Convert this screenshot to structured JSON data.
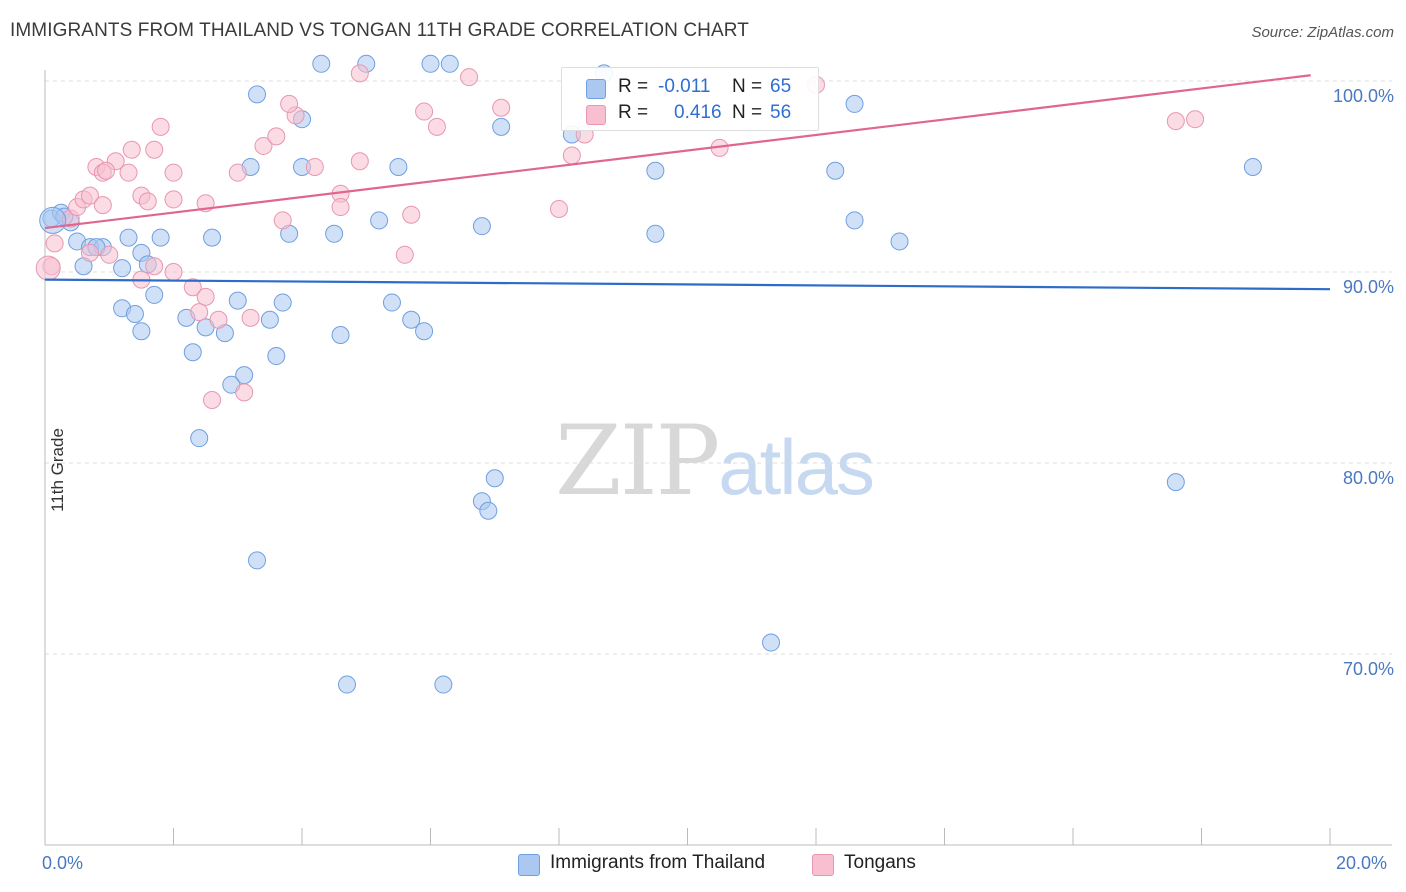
{
  "title": "IMMIGRANTS FROM THAILAND VS TONGAN 11TH GRADE CORRELATION CHART",
  "source": "Source: ZipAtlas.com",
  "watermark": {
    "zip": "ZIP",
    "atlas": "atlas"
  },
  "legend_top": [
    {
      "r_label": "R =",
      "r_value": "-0.011",
      "n_label": "N =",
      "n_value": "65"
    },
    {
      "r_label": "R =",
      "r_value": "0.416",
      "n_label": "N =",
      "n_value": "56"
    }
  ],
  "legend_bottom": [
    "Immigrants from Thailand",
    "Tongans"
  ],
  "colors": {
    "blue_fill": "#aac8f0",
    "blue_stroke": "#6f9fe0",
    "blue_line": "#2d6cc9",
    "pink_fill": "#f7bfd0",
    "pink_stroke": "#e896b2",
    "pink_line": "#e0668f",
    "grid": "#dcdcdc",
    "axis_text": "#4a78c2"
  },
  "chart_data": {
    "type": "scatter",
    "title": "IMMIGRANTS FROM THAILAND VS TONGAN 11TH GRADE CORRELATION CHART",
    "xlabel": "",
    "ylabel": "11th Grade",
    "xlim": [
      0,
      20
    ],
    "ylim": [
      60,
      101
    ],
    "x_tick_labels": [
      "0.0%",
      "20.0%"
    ],
    "y_ticks": [
      {
        "value": 100,
        "label": "100.0%"
      },
      {
        "value": 90,
        "label": "90.0%"
      },
      {
        "value": 80,
        "label": "80.0%"
      },
      {
        "value": 70,
        "label": "70.0%"
      }
    ],
    "series": [
      {
        "name": "Immigrants from Thailand",
        "color": "blue",
        "r": -0.011,
        "n": 65,
        "trend": [
          [
            0,
            89.6
          ],
          [
            20,
            89.1
          ]
        ],
        "points": [
          [
            0.1,
            92.8
          ],
          [
            0.25,
            93.1
          ],
          [
            0.4,
            92.6
          ],
          [
            0.5,
            91.6
          ],
          [
            0.7,
            91.3
          ],
          [
            0.9,
            91.3
          ],
          [
            1.3,
            91.8
          ],
          [
            1.5,
            91.0
          ],
          [
            1.8,
            91.8
          ],
          [
            0.6,
            90.3
          ],
          [
            0.8,
            91.3
          ],
          [
            1.2,
            90.2
          ],
          [
            2.6,
            91.8
          ],
          [
            3.3,
            99.3
          ],
          [
            4.3,
            100.9
          ],
          [
            5.0,
            100.9
          ],
          [
            6.0,
            100.9
          ],
          [
            6.3,
            100.9
          ],
          [
            5.5,
            95.5
          ],
          [
            4.0,
            98.0
          ],
          [
            4.0,
            95.5
          ],
          [
            3.2,
            95.5
          ],
          [
            3.8,
            92.0
          ],
          [
            4.5,
            92.0
          ],
          [
            5.2,
            92.7
          ],
          [
            7.1,
            97.6
          ],
          [
            6.8,
            92.4
          ],
          [
            8.2,
            97.2
          ],
          [
            9.5,
            95.3
          ],
          [
            9.5,
            92.0
          ],
          [
            12.3,
            95.3
          ],
          [
            12.6,
            98.8
          ],
          [
            12.6,
            92.7
          ],
          [
            13.3,
            91.6
          ],
          [
            18.8,
            95.5
          ],
          [
            1.7,
            88.8
          ],
          [
            3.0,
            88.5
          ],
          [
            3.7,
            88.4
          ],
          [
            5.4,
            88.4
          ],
          [
            1.2,
            88.1
          ],
          [
            1.4,
            87.8
          ],
          [
            2.2,
            87.6
          ],
          [
            3.5,
            87.5
          ],
          [
            5.7,
            87.5
          ],
          [
            1.5,
            86.9
          ],
          [
            2.5,
            87.1
          ],
          [
            2.8,
            86.8
          ],
          [
            4.6,
            86.7
          ],
          [
            5.9,
            86.9
          ],
          [
            2.3,
            85.8
          ],
          [
            3.6,
            85.6
          ],
          [
            3.1,
            84.6
          ],
          [
            2.9,
            84.1
          ],
          [
            2.4,
            81.3
          ],
          [
            7.0,
            79.2
          ],
          [
            6.8,
            78.0
          ],
          [
            6.9,
            77.5
          ],
          [
            17.6,
            79.0
          ],
          [
            3.3,
            74.9
          ],
          [
            11.3,
            70.6
          ],
          [
            4.7,
            68.4
          ],
          [
            6.2,
            68.4
          ],
          [
            8.7,
            100.4
          ],
          [
            1.6,
            90.4
          ],
          [
            0.3,
            92.9
          ]
        ]
      },
      {
        "name": "Tongans",
        "color": "pink",
        "r": 0.416,
        "n": 56,
        "trend": [
          [
            0,
            92.3
          ],
          [
            19.7,
            100.3
          ]
        ],
        "points": [
          [
            0.1,
            90.3
          ],
          [
            0.15,
            91.5
          ],
          [
            0.4,
            92.8
          ],
          [
            0.5,
            93.4
          ],
          [
            0.6,
            93.8
          ],
          [
            0.7,
            94.0
          ],
          [
            0.9,
            93.5
          ],
          [
            0.8,
            95.5
          ],
          [
            0.9,
            95.2
          ],
          [
            1.1,
            95.8
          ],
          [
            1.3,
            95.2
          ],
          [
            1.5,
            94.0
          ],
          [
            1.6,
            93.7
          ],
          [
            2.0,
            93.8
          ],
          [
            2.5,
            93.6
          ],
          [
            1.8,
            97.6
          ],
          [
            1.7,
            96.4
          ],
          [
            1.35,
            96.4
          ],
          [
            2.0,
            95.2
          ],
          [
            3.0,
            95.2
          ],
          [
            3.4,
            96.6
          ],
          [
            3.6,
            97.1
          ],
          [
            3.9,
            98.2
          ],
          [
            3.8,
            98.8
          ],
          [
            3.7,
            92.7
          ],
          [
            4.2,
            95.5
          ],
          [
            4.6,
            94.1
          ],
          [
            4.6,
            93.4
          ],
          [
            4.9,
            95.8
          ],
          [
            5.6,
            90.9
          ],
          [
            5.7,
            93.0
          ],
          [
            5.9,
            98.4
          ],
          [
            6.1,
            97.6
          ],
          [
            6.6,
            100.2
          ],
          [
            7.1,
            98.6
          ],
          [
            8.2,
            96.1
          ],
          [
            8.4,
            97.2
          ],
          [
            8.0,
            93.3
          ],
          [
            10.5,
            96.5
          ],
          [
            12.0,
            99.8
          ],
          [
            17.6,
            97.9
          ],
          [
            17.9,
            98.0
          ],
          [
            4.9,
            100.4
          ],
          [
            0.7,
            91.0
          ],
          [
            1.5,
            89.6
          ],
          [
            1.7,
            90.3
          ],
          [
            2.0,
            90.0
          ],
          [
            2.3,
            89.2
          ],
          [
            2.5,
            88.7
          ],
          [
            2.4,
            87.9
          ],
          [
            2.7,
            87.5
          ],
          [
            3.2,
            87.6
          ],
          [
            2.6,
            83.3
          ],
          [
            3.1,
            83.7
          ],
          [
            1.0,
            90.9
          ],
          [
            0.95,
            95.3
          ]
        ]
      }
    ]
  }
}
